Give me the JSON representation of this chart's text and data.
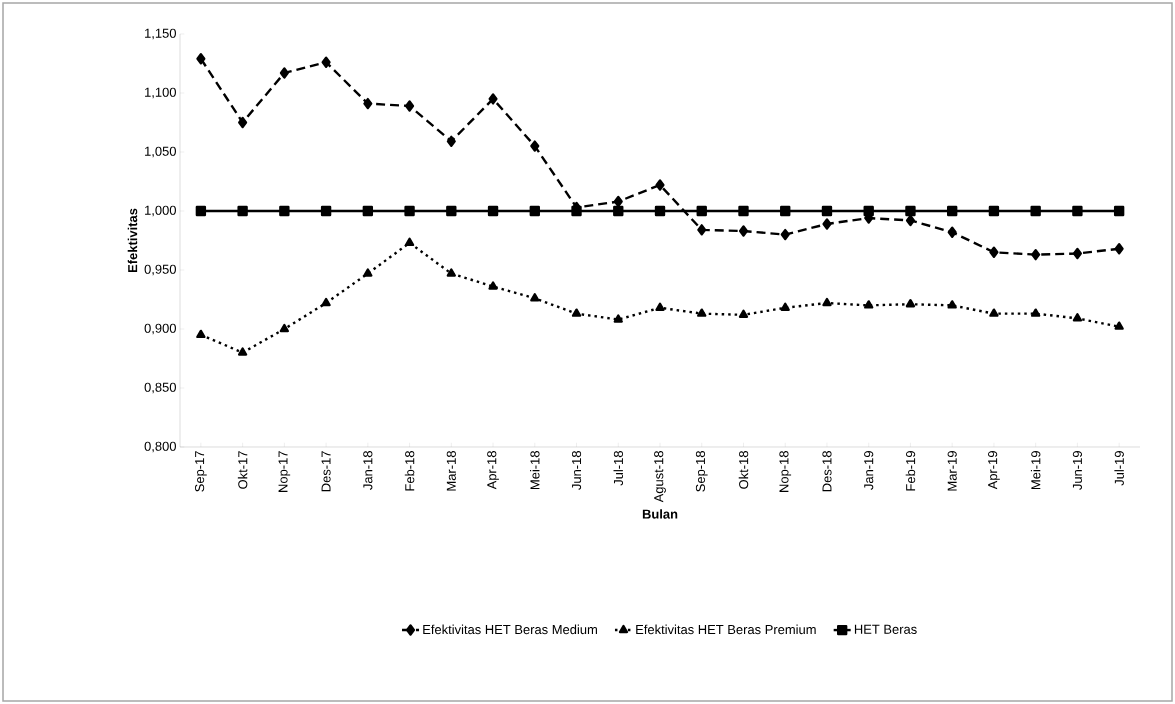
{
  "chart_data": {
    "type": "line",
    "xlabel": "Bulan",
    "ylabel": "Efektivitas",
    "categories": [
      "Sep-17",
      "Okt-17",
      "Nop-17",
      "Des-17",
      "Jan-18",
      "Feb-18",
      "Mar-18",
      "Apr-18",
      "Mei-18",
      "Jun-18",
      "Jul-18",
      "Agust-18",
      "Sep-18",
      "Okt-18",
      "Nop-18",
      "Des-18",
      "Jan-19",
      "Feb-19",
      "Mar-19",
      "Apr-19",
      "Mei-19",
      "Jun-19",
      "Jul-19"
    ],
    "series": [
      {
        "name": "Efektivitas HET Beras Medium",
        "color": "#000000",
        "marker": "diamond",
        "line_style": "dashed",
        "values": [
          1.129,
          1.075,
          1.117,
          1.126,
          1.091,
          1.089,
          1.059,
          1.095,
          1.055,
          1.003,
          1.008,
          1.022,
          0.984,
          0.983,
          0.98,
          0.989,
          0.994,
          0.992,
          0.982,
          0.965,
          0.963,
          0.964,
          0.968
        ]
      },
      {
        "name": "Efektivitas HET Beras Premium",
        "color": "#000000",
        "marker": "triangle",
        "line_style": "dotted",
        "values": [
          0.895,
          0.88,
          0.9,
          0.922,
          0.947,
          0.973,
          0.947,
          0.936,
          0.926,
          0.913,
          0.908,
          0.918,
          0.913,
          0.912,
          0.918,
          0.922,
          0.92,
          0.921,
          0.92,
          0.913,
          0.913,
          0.909,
          0.902
        ]
      },
      {
        "name": "HET Beras",
        "color": "#000000",
        "marker": "square",
        "line_style": "solid",
        "values": [
          1,
          1,
          1,
          1,
          1,
          1,
          1,
          1,
          1,
          1,
          1,
          1,
          1,
          1,
          1,
          1,
          1,
          1,
          1,
          1,
          1,
          1,
          1
        ]
      }
    ],
    "ylim": [
      0.8,
      1.15
    ],
    "yticks": [
      {
        "value": 0.8,
        "label": "0,800"
      },
      {
        "value": 0.85,
        "label": "0,850"
      },
      {
        "value": 0.9,
        "label": "0,900"
      },
      {
        "value": 0.95,
        "label": "0,950"
      },
      {
        "value": 1.0,
        "label": "1,000"
      },
      {
        "value": 1.05,
        "label": "1,050"
      },
      {
        "value": 1.1,
        "label": "1,100"
      },
      {
        "value": 1.15,
        "label": "1,150"
      }
    ],
    "grid": false,
    "legend": "bottom"
  }
}
